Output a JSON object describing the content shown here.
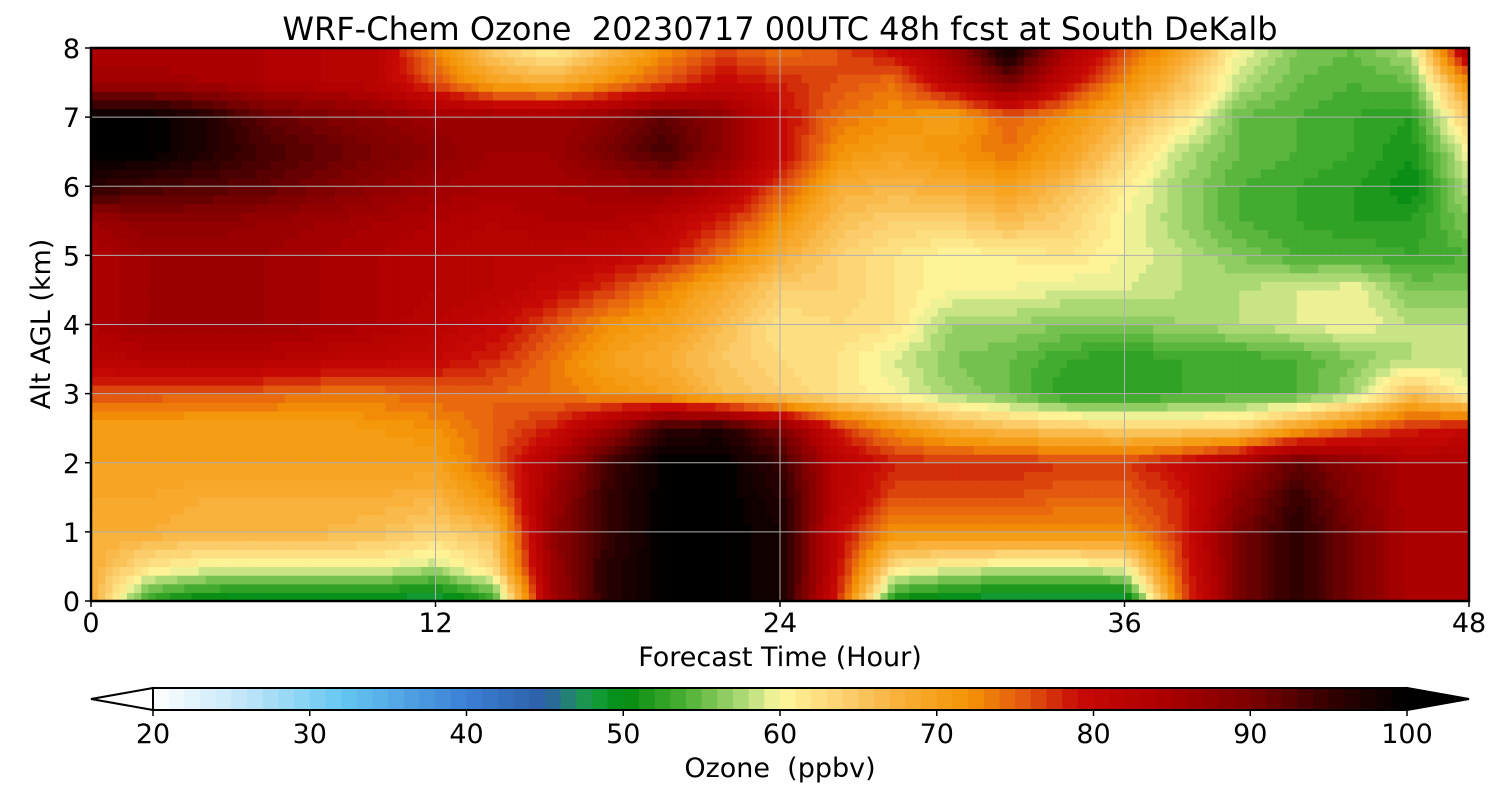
{
  "chart_data": {
    "type": "heatmap",
    "title": "WRF-Chem Ozone  20230717 00UTC 48h fcst at South DeKalb",
    "xlabel": "Forecast Time (Hour)",
    "ylabel": "Alt AGL (km)",
    "xlim": [
      0,
      48
    ],
    "ylim": [
      0,
      8
    ],
    "x_ticks": [
      "0",
      "12",
      "24",
      "36",
      "48"
    ],
    "y_ticks": [
      "0",
      "1",
      "2",
      "3",
      "4",
      "5",
      "6",
      "7",
      "8"
    ],
    "grid": true,
    "x": [
      0,
      2,
      4,
      6,
      8,
      10,
      12,
      14,
      16,
      18,
      20,
      22,
      24,
      26,
      28,
      30,
      32,
      34,
      36,
      38,
      40,
      42,
      44,
      46,
      48
    ],
    "y": [
      0,
      0.5,
      1,
      1.5,
      2,
      2.5,
      3,
      3.5,
      4,
      4.5,
      5,
      5.5,
      6,
      6.5,
      7,
      7.5,
      8
    ],
    "z": [
      [
        68,
        52,
        49,
        48,
        48,
        48,
        47,
        52,
        85,
        96,
        100,
        100,
        98,
        78,
        50,
        48,
        47,
        47,
        47,
        75,
        90,
        96,
        90,
        84,
        84
      ],
      [
        68,
        62,
        60,
        60,
        60,
        60,
        58,
        63,
        86,
        96,
        100,
        100,
        98,
        80,
        62,
        60,
        59,
        59,
        60,
        77,
        90,
        96,
        90,
        84,
        84
      ],
      [
        68,
        68,
        67,
        67,
        67,
        66,
        64,
        66,
        87,
        95,
        100,
        100,
        98,
        80,
        72,
        72,
        72,
        72,
        72,
        78,
        90,
        96,
        90,
        84,
        84
      ],
      [
        69,
        69,
        68,
        68,
        68,
        68,
        67,
        72,
        86,
        95,
        100,
        100,
        97,
        82,
        76,
        76,
        76,
        75,
        75,
        78,
        88,
        95,
        89,
        84,
        84
      ],
      [
        70,
        70,
        70,
        70,
        70,
        70,
        70,
        75,
        84,
        94,
        100,
        100,
        95,
        82,
        78,
        78,
        78,
        77,
        77,
        80,
        85,
        92,
        88,
        84,
        84
      ],
      [
        70,
        70,
        70,
        70,
        70,
        71,
        72,
        75,
        78,
        86,
        96,
        97,
        90,
        78,
        72,
        68,
        66,
        65,
        64,
        64,
        64,
        70,
        75,
        78,
        80
      ],
      [
        76,
        76,
        75,
        75,
        74,
        74,
        75,
        75,
        74,
        72,
        70,
        66,
        64,
        62,
        60,
        57,
        55,
        52,
        52,
        53,
        54,
        54,
        57,
        66,
        60
      ],
      [
        82,
        83,
        83,
        83,
        82,
        81,
        80,
        78,
        74,
        70,
        68,
        65,
        63,
        62,
        59,
        56,
        55,
        53,
        52,
        53,
        53,
        54,
        56,
        58,
        58
      ],
      [
        84,
        86,
        86,
        86,
        85,
        84,
        82,
        80,
        76,
        72,
        70,
        66,
        62,
        63,
        62,
        57,
        57,
        56,
        56,
        57,
        58,
        59,
        60,
        58,
        58
      ],
      [
        84,
        86,
        86,
        86,
        85,
        84,
        83,
        82,
        80,
        77,
        73,
        68,
        64,
        64,
        62,
        60,
        60,
        59,
        59,
        58,
        58,
        59,
        60,
        56,
        56
      ],
      [
        84,
        86,
        86,
        86,
        85,
        84,
        83,
        82,
        82,
        81,
        79,
        74,
        68,
        64,
        62,
        60,
        61,
        62,
        60,
        58,
        56,
        54,
        54,
        53,
        54
      ],
      [
        86,
        88,
        88,
        87,
        86,
        85,
        84,
        83,
        84,
        84,
        82,
        78,
        72,
        66,
        64,
        64,
        66,
        64,
        60,
        57,
        54,
        53,
        52,
        52,
        56
      ],
      [
        96,
        94,
        93,
        92,
        90,
        88,
        86,
        85,
        85,
        86,
        87,
        84,
        76,
        68,
        67,
        68,
        70,
        66,
        61,
        57,
        54,
        53,
        52,
        50,
        58
      ],
      [
        100,
        100,
        97,
        94,
        92,
        90,
        88,
        86,
        86,
        90,
        94,
        88,
        80,
        72,
        70,
        72,
        74,
        70,
        64,
        58,
        55,
        54,
        53,
        51,
        60
      ],
      [
        100,
        100,
        97,
        92,
        90,
        88,
        86,
        86,
        86,
        88,
        92,
        88,
        80,
        74,
        72,
        70,
        75,
        72,
        67,
        62,
        55,
        54,
        53,
        52,
        65
      ],
      [
        86,
        86,
        85,
        84,
        83,
        82,
        76,
        70,
        68,
        72,
        76,
        80,
        78,
        76,
        74,
        82,
        90,
        80,
        72,
        66,
        58,
        55,
        54,
        55,
        72
      ],
      [
        84,
        84,
        84,
        84,
        83,
        82,
        72,
        64,
        60,
        66,
        72,
        76,
        74,
        76,
        80,
        86,
        100,
        84,
        76,
        70,
        60,
        56,
        55,
        58,
        86
      ]
    ],
    "colorbar": {
      "label": "Ozone  (ppbv)",
      "min": 20,
      "max": 100,
      "step": 1,
      "ticks": [
        "20",
        "30",
        "40",
        "50",
        "60",
        "70",
        "80",
        "90",
        "100"
      ],
      "extend": "both",
      "stops": [
        [
          20,
          "#ffffff"
        ],
        [
          26,
          "#bde5f7"
        ],
        [
          32,
          "#66c7f2"
        ],
        [
          40,
          "#3b7fd4"
        ],
        [
          45,
          "#2d5fa8"
        ],
        [
          48,
          "#18a040"
        ],
        [
          50,
          "#008a10"
        ],
        [
          54,
          "#4db033"
        ],
        [
          58,
          "#b7de7e"
        ],
        [
          60,
          "#fff79d"
        ],
        [
          64,
          "#fbd070"
        ],
        [
          68,
          "#f9ad35"
        ],
        [
          72,
          "#f49404"
        ],
        [
          76,
          "#e05010"
        ],
        [
          79,
          "#c80a04"
        ],
        [
          84,
          "#b00000"
        ],
        [
          90,
          "#7c0000"
        ],
        [
          95,
          "#350000"
        ],
        [
          100,
          "#000000"
        ]
      ]
    }
  }
}
